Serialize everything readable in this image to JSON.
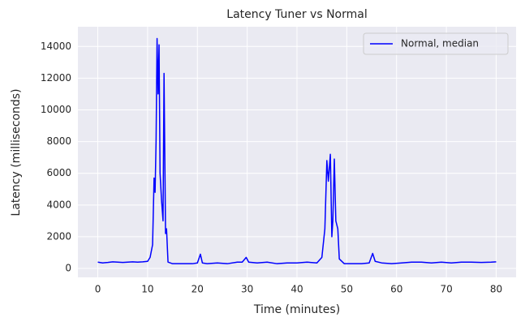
{
  "chart_data": {
    "type": "line",
    "title": "Latency Tuner vs Normal",
    "xlabel": "Time (minutes)",
    "ylabel": "Latency (milliseconds)",
    "x": [
      0,
      1,
      2,
      3,
      4,
      5,
      6,
      7,
      8,
      9,
      10,
      10.5,
      11,
      11.3,
      11.5,
      11.7,
      11.9,
      12.1,
      12.3,
      12.5,
      12.8,
      13.1,
      13.3,
      13.6,
      13.8,
      14.1,
      15,
      17,
      19,
      20,
      20.6,
      21,
      22,
      24,
      26,
      28,
      29,
      29.8,
      30.3,
      32,
      34,
      36,
      38,
      40,
      42,
      44,
      45,
      45.6,
      46,
      46.3,
      46.7,
      47,
      47.2,
      47.5,
      47.8,
      48.2,
      48.5,
      49.5,
      51,
      53,
      54.5,
      55.2,
      55.7,
      57,
      59,
      61,
      63,
      65,
      67,
      69,
      71,
      73,
      75,
      77,
      79,
      80
    ],
    "series": [
      {
        "name": "Normal, median",
        "color": "#0000ff",
        "values": [
          400,
          350,
          380,
          420,
          400,
          380,
          400,
          420,
          400,
          420,
          450,
          700,
          1500,
          5700,
          4800,
          8000,
          14500,
          11000,
          14100,
          6000,
          4300,
          3000,
          12300,
          2200,
          2500,
          400,
          300,
          300,
          300,
          350,
          900,
          350,
          300,
          350,
          300,
          400,
          400,
          700,
          400,
          350,
          400,
          300,
          350,
          350,
          400,
          350,
          700,
          2500,
          6800,
          5500,
          7200,
          2000,
          3000,
          6900,
          3000,
          2500,
          600,
          300,
          300,
          300,
          350,
          950,
          450,
          350,
          300,
          350,
          400,
          400,
          350,
          400,
          350,
          400,
          400,
          380,
          400,
          420
        ]
      }
    ],
    "xlim": [
      -4,
      84
    ],
    "ylim": [
      -560,
      15240
    ],
    "xticks": [
      0,
      10,
      20,
      30,
      40,
      50,
      60,
      70,
      80
    ],
    "yticks": [
      0,
      2000,
      4000,
      6000,
      8000,
      10000,
      12000,
      14000
    ],
    "grid": true,
    "legend": "upper right"
  }
}
